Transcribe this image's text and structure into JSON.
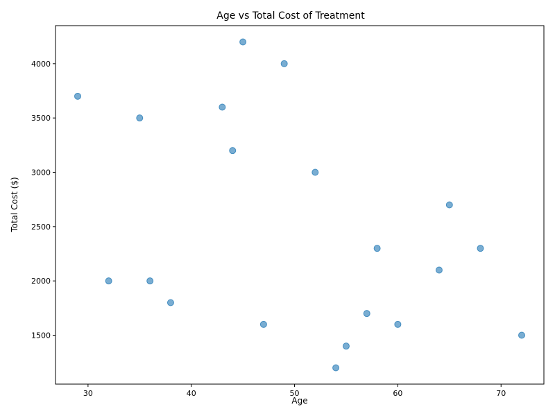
{
  "chart_data": {
    "type": "scatter",
    "title": "Age vs Total Cost of Treatment",
    "xlabel": "Age",
    "ylabel": "Total Cost ($)",
    "xlim": [
      26.85,
      74.15
    ],
    "ylim": [
      1050,
      4350
    ],
    "xticks": [
      30,
      40,
      50,
      60,
      70
    ],
    "yticks": [
      1500,
      2000,
      2500,
      3000,
      3500,
      4000
    ],
    "grid": false,
    "marker_color": "#1f77b4",
    "marker_alpha": 0.6,
    "points": [
      {
        "x": 29,
        "y": 3700
      },
      {
        "x": 32,
        "y": 2000
      },
      {
        "x": 35,
        "y": 3500
      },
      {
        "x": 36,
        "y": 2000
      },
      {
        "x": 38,
        "y": 1800
      },
      {
        "x": 43,
        "y": 3600
      },
      {
        "x": 44,
        "y": 3200
      },
      {
        "x": 45,
        "y": 4200
      },
      {
        "x": 47,
        "y": 1600
      },
      {
        "x": 49,
        "y": 4000
      },
      {
        "x": 52,
        "y": 3000
      },
      {
        "x": 54,
        "y": 1200
      },
      {
        "x": 55,
        "y": 1400
      },
      {
        "x": 57,
        "y": 1700
      },
      {
        "x": 58,
        "y": 2300
      },
      {
        "x": 60,
        "y": 1600
      },
      {
        "x": 64,
        "y": 2100
      },
      {
        "x": 65,
        "y": 2700
      },
      {
        "x": 68,
        "y": 2300
      },
      {
        "x": 72,
        "y": 1500
      }
    ]
  }
}
